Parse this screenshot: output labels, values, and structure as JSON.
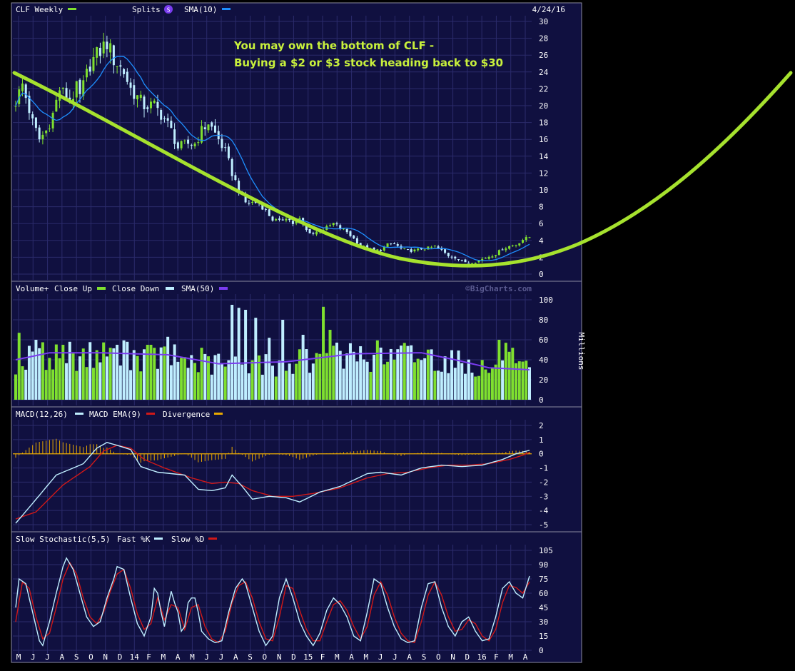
{
  "chart_data": {
    "type": "candlestick",
    "title": "CLF Weekly",
    "date_label": "4/24/16",
    "watermark": "©BigCharts.com",
    "colors": {
      "panel_bg": "#101040",
      "grid": "#2b2b6b",
      "up": "#7fe02f",
      "down": "#bfeeff",
      "sma": "#1e8fff",
      "vol_sma": "#7a3cf0",
      "macd": "#bfeeff",
      "macd_ema": "#d01818",
      "divergence": "#e8a800",
      "fastk": "#bfeeff",
      "slowd": "#d01818",
      "curve": "#a6e22e",
      "annotation": "#c8f03c",
      "splits_badge": "#7a3cf0",
      "text": "#ffffff"
    },
    "price_panel": {
      "legend": [
        "CLF Weekly",
        "Splits",
        "SMA(10)"
      ],
      "splits_badge_label": "S",
      "ylim": [
        0,
        30
      ],
      "ticks": [
        0,
        2,
        4,
        6,
        8,
        10,
        12,
        14,
        16,
        18,
        20,
        22,
        24,
        26,
        28,
        30
      ],
      "annotation": [
        "You may own the bottom of CLF -",
        "Buying a $2 or $3 stock heading back to  $30"
      ],
      "anchors": [
        [
          0,
          20.5
        ],
        [
          2,
          22.5
        ],
        [
          5,
          18
        ],
        [
          7,
          16
        ],
        [
          9,
          17
        ],
        [
          11,
          19
        ],
        [
          13,
          22
        ],
        [
          16,
          20.5
        ],
        [
          18,
          22
        ],
        [
          19,
          21
        ],
        [
          22,
          25
        ],
        [
          24,
          26
        ],
        [
          27,
          27.5
        ],
        [
          29,
          25.5
        ],
        [
          32,
          24
        ],
        [
          34,
          22
        ],
        [
          36,
          21
        ],
        [
          38,
          20
        ],
        [
          41,
          20
        ],
        [
          44,
          18.5
        ],
        [
          46,
          17
        ],
        [
          48,
          15
        ],
        [
          51,
          15.5
        ],
        [
          53,
          15.5
        ],
        [
          55,
          17
        ],
        [
          57,
          18
        ],
        [
          60,
          16
        ],
        [
          62,
          14.5
        ],
        [
          64,
          12
        ],
        [
          66,
          10
        ],
        [
          68,
          8.5
        ],
        [
          70,
          8.5
        ],
        [
          72,
          8.5
        ],
        [
          74,
          7.5
        ],
        [
          76,
          6.5
        ],
        [
          78,
          6.2
        ],
        [
          80,
          6.8
        ],
        [
          82,
          6
        ],
        [
          84,
          6.5
        ],
        [
          86,
          5.2
        ],
        [
          88,
          4.8
        ],
        [
          90,
          5.2
        ],
        [
          92,
          5.5
        ],
        [
          94,
          6
        ],
        [
          96,
          5.5
        ],
        [
          98,
          5
        ],
        [
          100,
          4.2
        ],
        [
          102,
          3.4
        ],
        [
          104,
          3
        ],
        [
          106,
          2.8
        ],
        [
          108,
          2.9
        ],
        [
          110,
          3.5
        ],
        [
          112,
          3.6
        ],
        [
          114,
          3
        ],
        [
          116,
          2.8
        ],
        [
          118,
          2.8
        ],
        [
          120,
          3
        ],
        [
          122,
          3.1
        ],
        [
          124,
          3.3
        ],
        [
          126,
          2.8
        ],
        [
          128,
          2.2
        ],
        [
          130,
          2
        ],
        [
          132,
          1.5
        ],
        [
          134,
          1.4
        ],
        [
          136,
          1.5
        ],
        [
          138,
          1.8
        ],
        [
          140,
          2.1
        ],
        [
          142,
          2.4
        ],
        [
          144,
          3
        ],
        [
          146,
          3.3
        ],
        [
          148,
          3.5
        ],
        [
          150,
          4.1
        ],
        [
          152,
          4.4
        ]
      ]
    },
    "volume_panel": {
      "legend": [
        "Volume+",
        "Close Up",
        "Close Down",
        "SMA(50)"
      ],
      "ylabel": "Millions",
      "ylim": [
        0,
        100
      ],
      "ticks": [
        0,
        20,
        40,
        60,
        80,
        100
      ],
      "sma_anchors": [
        [
          0,
          40
        ],
        [
          10,
          47
        ],
        [
          25,
          47
        ],
        [
          45,
          45
        ],
        [
          60,
          36
        ],
        [
          80,
          38
        ],
        [
          100,
          46
        ],
        [
          120,
          47
        ],
        [
          130,
          40
        ],
        [
          140,
          32
        ],
        [
          152,
          30
        ]
      ],
      "spikes": [
        [
          1,
          67
        ],
        [
          6,
          60
        ],
        [
          14,
          55
        ],
        [
          16,
          58
        ],
        [
          28,
          52
        ],
        [
          33,
          58
        ],
        [
          40,
          55
        ],
        [
          45,
          63
        ],
        [
          55,
          52
        ],
        [
          60,
          46
        ],
        [
          64,
          95
        ],
        [
          66,
          92
        ],
        [
          68,
          90
        ],
        [
          71,
          82
        ],
        [
          75,
          62
        ],
        [
          79,
          80
        ],
        [
          85,
          65
        ],
        [
          91,
          93
        ],
        [
          93,
          70
        ],
        [
          100,
          48
        ],
        [
          106,
          45
        ],
        [
          110,
          38
        ],
        [
          130,
          32
        ],
        [
          143,
          60
        ],
        [
          145,
          57
        ],
        [
          146,
          48
        ],
        [
          147,
          52
        ]
      ]
    },
    "macd_panel": {
      "legend": [
        "MACD(12,26)",
        "MACD EMA(9)",
        "Divergence"
      ],
      "ylim": [
        -5,
        2
      ],
      "ticks": [
        -5,
        -4,
        -3,
        -2,
        -1,
        0,
        1,
        2
      ],
      "macd_anchors": [
        [
          0,
          -4.9
        ],
        [
          5,
          -3.5
        ],
        [
          12,
          -1.5
        ],
        [
          20,
          -0.7
        ],
        [
          24,
          0.4
        ],
        [
          27,
          0.8
        ],
        [
          30,
          0.6
        ],
        [
          34,
          0.3
        ],
        [
          37,
          -0.9
        ],
        [
          42,
          -1.3
        ],
        [
          50,
          -1.5
        ],
        [
          54,
          -2.5
        ],
        [
          58,
          -2.6
        ],
        [
          62,
          -2.4
        ],
        [
          64,
          -1.5
        ],
        [
          67,
          -2.3
        ],
        [
          70,
          -3.2
        ],
        [
          75,
          -3.0
        ],
        [
          80,
          -3.1
        ],
        [
          84,
          -3.4
        ],
        [
          90,
          -2.7
        ],
        [
          96,
          -2.3
        ],
        [
          104,
          -1.4
        ],
        [
          108,
          -1.3
        ],
        [
          114,
          -1.5
        ],
        [
          120,
          -1.0
        ],
        [
          126,
          -0.8
        ],
        [
          132,
          -0.9
        ],
        [
          138,
          -0.8
        ],
        [
          144,
          -0.4
        ],
        [
          148,
          0.0
        ],
        [
          152,
          0.25
        ]
      ],
      "ema_anchors": [
        [
          0,
          -4.6
        ],
        [
          6,
          -4.1
        ],
        [
          14,
          -2.2
        ],
        [
          22,
          -0.9
        ],
        [
          26,
          0.2
        ],
        [
          30,
          0.6
        ],
        [
          34,
          0.4
        ],
        [
          38,
          -0.4
        ],
        [
          44,
          -1.0
        ],
        [
          52,
          -1.7
        ],
        [
          58,
          -2.1
        ],
        [
          62,
          -2.0
        ],
        [
          66,
          -2.1
        ],
        [
          70,
          -2.6
        ],
        [
          76,
          -3.0
        ],
        [
          82,
          -3.0
        ],
        [
          88,
          -2.8
        ],
        [
          96,
          -2.4
        ],
        [
          104,
          -1.7
        ],
        [
          110,
          -1.4
        ],
        [
          116,
          -1.3
        ],
        [
          122,
          -1.0
        ],
        [
          128,
          -0.8
        ],
        [
          134,
          -0.8
        ],
        [
          140,
          -0.7
        ],
        [
          146,
          -0.4
        ],
        [
          150,
          -0.1
        ],
        [
          152,
          0.1
        ]
      ]
    },
    "stoch_panel": {
      "legend": [
        "Slow Stochastic(5,5)",
        "Fast %K",
        "Slow %D"
      ],
      "ylim": [
        0,
        105
      ],
      "ticks": [
        0,
        15,
        30,
        45,
        60,
        75,
        90,
        105
      ],
      "k_anchors": [
        [
          0,
          45
        ],
        [
          1,
          75
        ],
        [
          3,
          70
        ],
        [
          5,
          40
        ],
        [
          7,
          10
        ],
        [
          8,
          5
        ],
        [
          10,
          30
        ],
        [
          12,
          60
        ],
        [
          14,
          88
        ],
        [
          15,
          97
        ],
        [
          17,
          85
        ],
        [
          19,
          60
        ],
        [
          21,
          35
        ],
        [
          23,
          25
        ],
        [
          25,
          30
        ],
        [
          27,
          55
        ],
        [
          29,
          75
        ],
        [
          30,
          88
        ],
        [
          32,
          85
        ],
        [
          34,
          55
        ],
        [
          36,
          28
        ],
        [
          38,
          15
        ],
        [
          40,
          35
        ],
        [
          41,
          65
        ],
        [
          42,
          60
        ],
        [
          43,
          40
        ],
        [
          44,
          25
        ],
        [
          45,
          45
        ],
        [
          46,
          62
        ],
        [
          47,
          50
        ],
        [
          48,
          40
        ],
        [
          49,
          20
        ],
        [
          50,
          25
        ],
        [
          51,
          50
        ],
        [
          52,
          55
        ],
        [
          53,
          55
        ],
        [
          54,
          40
        ],
        [
          55,
          20
        ],
        [
          57,
          12
        ],
        [
          59,
          8
        ],
        [
          61,
          10
        ],
        [
          63,
          40
        ],
        [
          65,
          65
        ],
        [
          67,
          75
        ],
        [
          68,
          70
        ],
        [
          70,
          45
        ],
        [
          72,
          20
        ],
        [
          74,
          5
        ],
        [
          76,
          15
        ],
        [
          78,
          55
        ],
        [
          80,
          75
        ],
        [
          82,
          55
        ],
        [
          84,
          30
        ],
        [
          86,
          15
        ],
        [
          88,
          5
        ],
        [
          90,
          18
        ],
        [
          92,
          42
        ],
        [
          94,
          55
        ],
        [
          96,
          48
        ],
        [
          98,
          35
        ],
        [
          100,
          15
        ],
        [
          102,
          10
        ],
        [
          104,
          40
        ],
        [
          106,
          75
        ],
        [
          108,
          70
        ],
        [
          110,
          45
        ],
        [
          112,
          25
        ],
        [
          114,
          12
        ],
        [
          116,
          8
        ],
        [
          118,
          10
        ],
        [
          120,
          45
        ],
        [
          122,
          70
        ],
        [
          124,
          72
        ],
        [
          126,
          45
        ],
        [
          128,
          25
        ],
        [
          130,
          15
        ],
        [
          132,
          30
        ],
        [
          134,
          35
        ],
        [
          136,
          20
        ],
        [
          138,
          10
        ],
        [
          140,
          12
        ],
        [
          142,
          35
        ],
        [
          144,
          65
        ],
        [
          146,
          72
        ],
        [
          148,
          60
        ],
        [
          150,
          55
        ],
        [
          152,
          78
        ]
      ],
      "d_anchors": [
        [
          0,
          30
        ],
        [
          2,
          72
        ],
        [
          4,
          65
        ],
        [
          6,
          35
        ],
        [
          8,
          12
        ],
        [
          10,
          18
        ],
        [
          12,
          45
        ],
        [
          14,
          75
        ],
        [
          16,
          92
        ],
        [
          18,
          80
        ],
        [
          20,
          55
        ],
        [
          22,
          35
        ],
        [
          24,
          28
        ],
        [
          26,
          40
        ],
        [
          28,
          62
        ],
        [
          30,
          80
        ],
        [
          32,
          85
        ],
        [
          34,
          65
        ],
        [
          36,
          38
        ],
        [
          38,
          22
        ],
        [
          40,
          28
        ],
        [
          42,
          55
        ],
        [
          44,
          32
        ],
        [
          46,
          48
        ],
        [
          48,
          45
        ],
        [
          50,
          22
        ],
        [
          52,
          45
        ],
        [
          54,
          48
        ],
        [
          56,
          25
        ],
        [
          58,
          12
        ],
        [
          60,
          8
        ],
        [
          62,
          20
        ],
        [
          64,
          50
        ],
        [
          66,
          68
        ],
        [
          68,
          72
        ],
        [
          70,
          55
        ],
        [
          72,
          30
        ],
        [
          74,
          12
        ],
        [
          76,
          10
        ],
        [
          78,
          35
        ],
        [
          80,
          68
        ],
        [
          82,
          65
        ],
        [
          84,
          42
        ],
        [
          86,
          22
        ],
        [
          88,
          10
        ],
        [
          90,
          10
        ],
        [
          92,
          30
        ],
        [
          94,
          48
        ],
        [
          96,
          52
        ],
        [
          98,
          42
        ],
        [
          100,
          25
        ],
        [
          102,
          12
        ],
        [
          104,
          25
        ],
        [
          106,
          58
        ],
        [
          108,
          72
        ],
        [
          110,
          58
        ],
        [
          112,
          35
        ],
        [
          114,
          18
        ],
        [
          116,
          10
        ],
        [
          118,
          8
        ],
        [
          120,
          30
        ],
        [
          122,
          58
        ],
        [
          124,
          72
        ],
        [
          126,
          58
        ],
        [
          128,
          35
        ],
        [
          130,
          20
        ],
        [
          132,
          22
        ],
        [
          134,
          32
        ],
        [
          136,
          28
        ],
        [
          138,
          15
        ],
        [
          140,
          10
        ],
        [
          142,
          22
        ],
        [
          144,
          50
        ],
        [
          146,
          68
        ],
        [
          148,
          66
        ],
        [
          150,
          60
        ],
        [
          152,
          72
        ]
      ]
    },
    "x_labels": [
      "M",
      "J",
      "J",
      "A",
      "S",
      "O",
      "N",
      "D",
      "14",
      "F",
      "M",
      "A",
      "M",
      "J",
      "J",
      "A",
      "S",
      "O",
      "N",
      "D",
      "15",
      "F",
      "M",
      "A",
      "M",
      "J",
      "J",
      "A",
      "S",
      "O",
      "N",
      "D",
      "16",
      "F",
      "M",
      "A"
    ]
  }
}
